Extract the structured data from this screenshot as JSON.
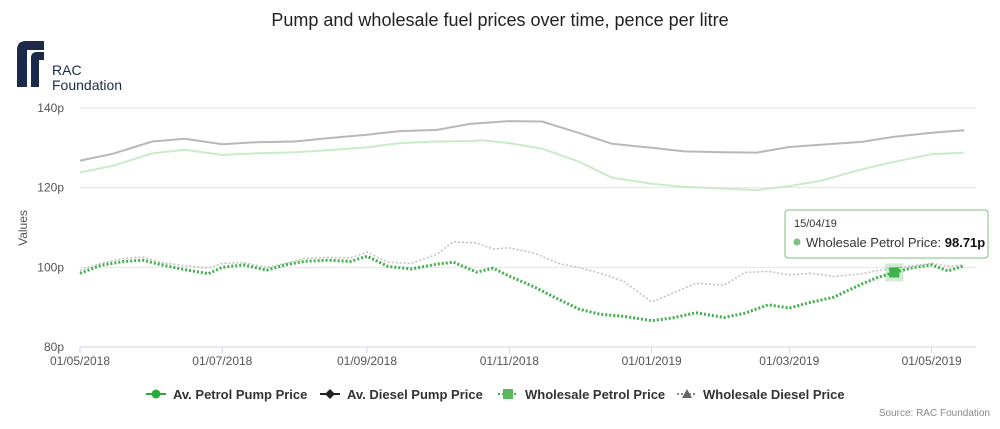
{
  "colors": {
    "petrol_pump": "#c8ecca",
    "diesel_pump": "#b8b8b8",
    "wholesale_petrol": "#3fb04a",
    "wholesale_diesel": "#c0c0c0",
    "legend_petrol_marker": "#2eaa3c",
    "legend_diesel_marker": "#222222",
    "logo": "#1b2a4a",
    "tooltip_border": "#7ec17e"
  },
  "logo": {
    "line1": "RAC",
    "line2": "Foundation"
  },
  "credit": "Source: RAC Foundation",
  "chart_data": {
    "type": "line",
    "title": "Pump and wholesale fuel prices over time, pence per litre",
    "ylabel": "Values",
    "xlabel": "",
    "ylim": [
      80,
      140
    ],
    "xlim": [
      "2018-05-01",
      "2019-05-20"
    ],
    "y_ticks": [
      {
        "value": 80,
        "label": "80p"
      },
      {
        "value": 100,
        "label": "100p"
      },
      {
        "value": 120,
        "label": "120p"
      },
      {
        "value": 140,
        "label": "140p"
      }
    ],
    "x_ticks": [
      {
        "date": "2018-05-01",
        "label": "01/05/2018"
      },
      {
        "date": "2018-07-01",
        "label": "01/07/2018"
      },
      {
        "date": "2018-09-01",
        "label": "01/09/2018"
      },
      {
        "date": "2018-11-01",
        "label": "01/11/2018"
      },
      {
        "date": "2019-01-01",
        "label": "01/01/2019"
      },
      {
        "date": "2019-03-01",
        "label": "01/03/2019"
      },
      {
        "date": "2019-05-01",
        "label": "01/05/2019"
      }
    ],
    "grid": true,
    "legend_position": "bottom",
    "series": [
      {
        "name": "Av. Petrol Pump Price",
        "style": "solid",
        "points": [
          [
            "2018-05-01",
            123.8
          ],
          [
            "2018-05-15",
            125.5
          ],
          [
            "2018-06-01",
            128.6
          ],
          [
            "2018-06-15",
            129.5
          ],
          [
            "2018-07-01",
            128.2
          ],
          [
            "2018-07-15",
            128.6
          ],
          [
            "2018-08-01",
            128.9
          ],
          [
            "2018-08-15",
            129.4
          ],
          [
            "2018-09-01",
            130.1
          ],
          [
            "2018-09-15",
            131.2
          ],
          [
            "2018-10-01",
            131.6
          ],
          [
            "2018-10-15",
            131.7
          ],
          [
            "2018-10-20",
            131.9
          ],
          [
            "2018-11-01",
            131.2
          ],
          [
            "2018-11-15",
            129.8
          ],
          [
            "2018-12-01",
            126.5
          ],
          [
            "2018-12-15",
            122.5
          ],
          [
            "2019-01-01",
            121.0
          ],
          [
            "2019-01-15",
            120.2
          ],
          [
            "2019-02-01",
            119.8
          ],
          [
            "2019-02-15",
            119.4
          ],
          [
            "2019-03-01",
            120.4
          ],
          [
            "2019-03-15",
            121.8
          ],
          [
            "2019-04-01",
            124.6
          ],
          [
            "2019-04-15",
            126.5
          ],
          [
            "2019-05-01",
            128.4
          ],
          [
            "2019-05-15",
            128.8
          ]
        ]
      },
      {
        "name": "Av. Diesel Pump Price",
        "style": "solid",
        "points": [
          [
            "2018-05-01",
            126.8
          ],
          [
            "2018-05-15",
            128.5
          ],
          [
            "2018-06-01",
            131.6
          ],
          [
            "2018-06-15",
            132.3
          ],
          [
            "2018-07-01",
            130.9
          ],
          [
            "2018-07-15",
            131.4
          ],
          [
            "2018-08-01",
            131.6
          ],
          [
            "2018-08-15",
            132.4
          ],
          [
            "2018-09-01",
            133.3
          ],
          [
            "2018-09-15",
            134.2
          ],
          [
            "2018-10-01",
            134.5
          ],
          [
            "2018-10-15",
            136.0
          ],
          [
            "2018-11-01",
            136.7
          ],
          [
            "2018-11-15",
            136.6
          ],
          [
            "2018-12-01",
            133.7
          ],
          [
            "2018-12-15",
            131.0
          ],
          [
            "2019-01-01",
            130.0
          ],
          [
            "2019-01-15",
            129.1
          ],
          [
            "2019-02-01",
            128.9
          ],
          [
            "2019-02-15",
            128.8
          ],
          [
            "2019-03-01",
            130.2
          ],
          [
            "2019-03-15",
            130.8
          ],
          [
            "2019-04-01",
            131.5
          ],
          [
            "2019-04-15",
            132.8
          ],
          [
            "2019-05-01",
            133.8
          ],
          [
            "2019-05-15",
            134.4
          ]
        ]
      },
      {
        "name": "Wholesale Petrol Price",
        "style": "dotted",
        "points": [
          [
            "2018-05-01",
            98.5
          ],
          [
            "2018-05-10",
            100.5
          ],
          [
            "2018-05-20",
            101.5
          ],
          [
            "2018-05-28",
            101.8
          ],
          [
            "2018-06-05",
            100.6
          ],
          [
            "2018-06-15",
            99.4
          ],
          [
            "2018-06-25",
            98.4
          ],
          [
            "2018-07-01",
            100.0
          ],
          [
            "2018-07-10",
            100.6
          ],
          [
            "2018-07-20",
            99.3
          ],
          [
            "2018-07-28",
            100.6
          ],
          [
            "2018-08-05",
            101.5
          ],
          [
            "2018-08-15",
            101.8
          ],
          [
            "2018-08-25",
            101.5
          ],
          [
            "2018-09-01",
            102.8
          ],
          [
            "2018-09-10",
            100.2
          ],
          [
            "2018-09-20",
            99.6
          ],
          [
            "2018-10-01",
            100.8
          ],
          [
            "2018-10-08",
            101.3
          ],
          [
            "2018-10-18",
            98.8
          ],
          [
            "2018-10-25",
            99.8
          ],
          [
            "2018-11-01",
            97.8
          ],
          [
            "2018-11-12",
            95.0
          ],
          [
            "2018-11-22",
            92.0
          ],
          [
            "2018-12-01",
            89.5
          ],
          [
            "2018-12-10",
            88.2
          ],
          [
            "2018-12-20",
            87.7
          ],
          [
            "2019-01-01",
            86.6
          ],
          [
            "2019-01-10",
            87.3
          ],
          [
            "2019-01-20",
            88.6
          ],
          [
            "2019-02-01",
            87.4
          ],
          [
            "2019-02-10",
            88.5
          ],
          [
            "2019-02-20",
            90.6
          ],
          [
            "2019-03-01",
            89.8
          ],
          [
            "2019-03-10",
            91.2
          ],
          [
            "2019-03-20",
            92.5
          ],
          [
            "2019-04-01",
            95.8
          ],
          [
            "2019-04-08",
            97.5
          ],
          [
            "2019-04-15",
            98.71
          ],
          [
            "2019-04-22",
            99.8
          ],
          [
            "2019-05-01",
            100.6
          ],
          [
            "2019-05-08",
            99.1
          ],
          [
            "2019-05-15",
            100.4
          ]
        ]
      },
      {
        "name": "Wholesale Diesel Price",
        "style": "dotted",
        "points": [
          [
            "2018-05-01",
            99.3
          ],
          [
            "2018-05-10",
            101.0
          ],
          [
            "2018-05-20",
            102.3
          ],
          [
            "2018-05-28",
            102.6
          ],
          [
            "2018-06-05",
            101.2
          ],
          [
            "2018-06-15",
            100.4
          ],
          [
            "2018-06-25",
            99.8
          ],
          [
            "2018-07-01",
            101.0
          ],
          [
            "2018-07-10",
            101.2
          ],
          [
            "2018-07-20",
            100.0
          ],
          [
            "2018-07-28",
            101.0
          ],
          [
            "2018-08-05",
            102.2
          ],
          [
            "2018-08-15",
            102.5
          ],
          [
            "2018-08-25",
            102.4
          ],
          [
            "2018-09-01",
            103.8
          ],
          [
            "2018-09-10",
            101.3
          ],
          [
            "2018-09-20",
            101.0
          ],
          [
            "2018-10-01",
            103.3
          ],
          [
            "2018-10-08",
            106.4
          ],
          [
            "2018-10-18",
            106.1
          ],
          [
            "2018-10-25",
            104.6
          ],
          [
            "2018-11-01",
            104.9
          ],
          [
            "2018-11-12",
            103.5
          ],
          [
            "2018-11-22",
            101.0
          ],
          [
            "2018-12-01",
            99.9
          ],
          [
            "2018-12-10",
            98.5
          ],
          [
            "2018-12-20",
            96.5
          ],
          [
            "2019-01-01",
            91.3
          ],
          [
            "2019-01-10",
            93.5
          ],
          [
            "2019-01-20",
            96.0
          ],
          [
            "2019-02-01",
            95.5
          ],
          [
            "2019-02-10",
            98.7
          ],
          [
            "2019-02-20",
            99.0
          ],
          [
            "2019-03-01",
            98.1
          ],
          [
            "2019-03-10",
            98.5
          ],
          [
            "2019-03-20",
            97.7
          ],
          [
            "2019-04-01",
            98.4
          ],
          [
            "2019-04-08",
            99.2
          ],
          [
            "2019-04-15",
            99.8
          ],
          [
            "2019-04-22",
            100.3
          ],
          [
            "2019-05-01",
            101.0
          ],
          [
            "2019-05-08",
            100.3
          ],
          [
            "2019-05-15",
            100.6
          ]
        ]
      }
    ],
    "tooltip": {
      "date": "15/04/19",
      "series": "Wholesale Petrol Price",
      "label": "Wholesale Petrol Price:",
      "value_text": "98.71p",
      "x": "2019-04-15",
      "y": 98.71
    }
  }
}
